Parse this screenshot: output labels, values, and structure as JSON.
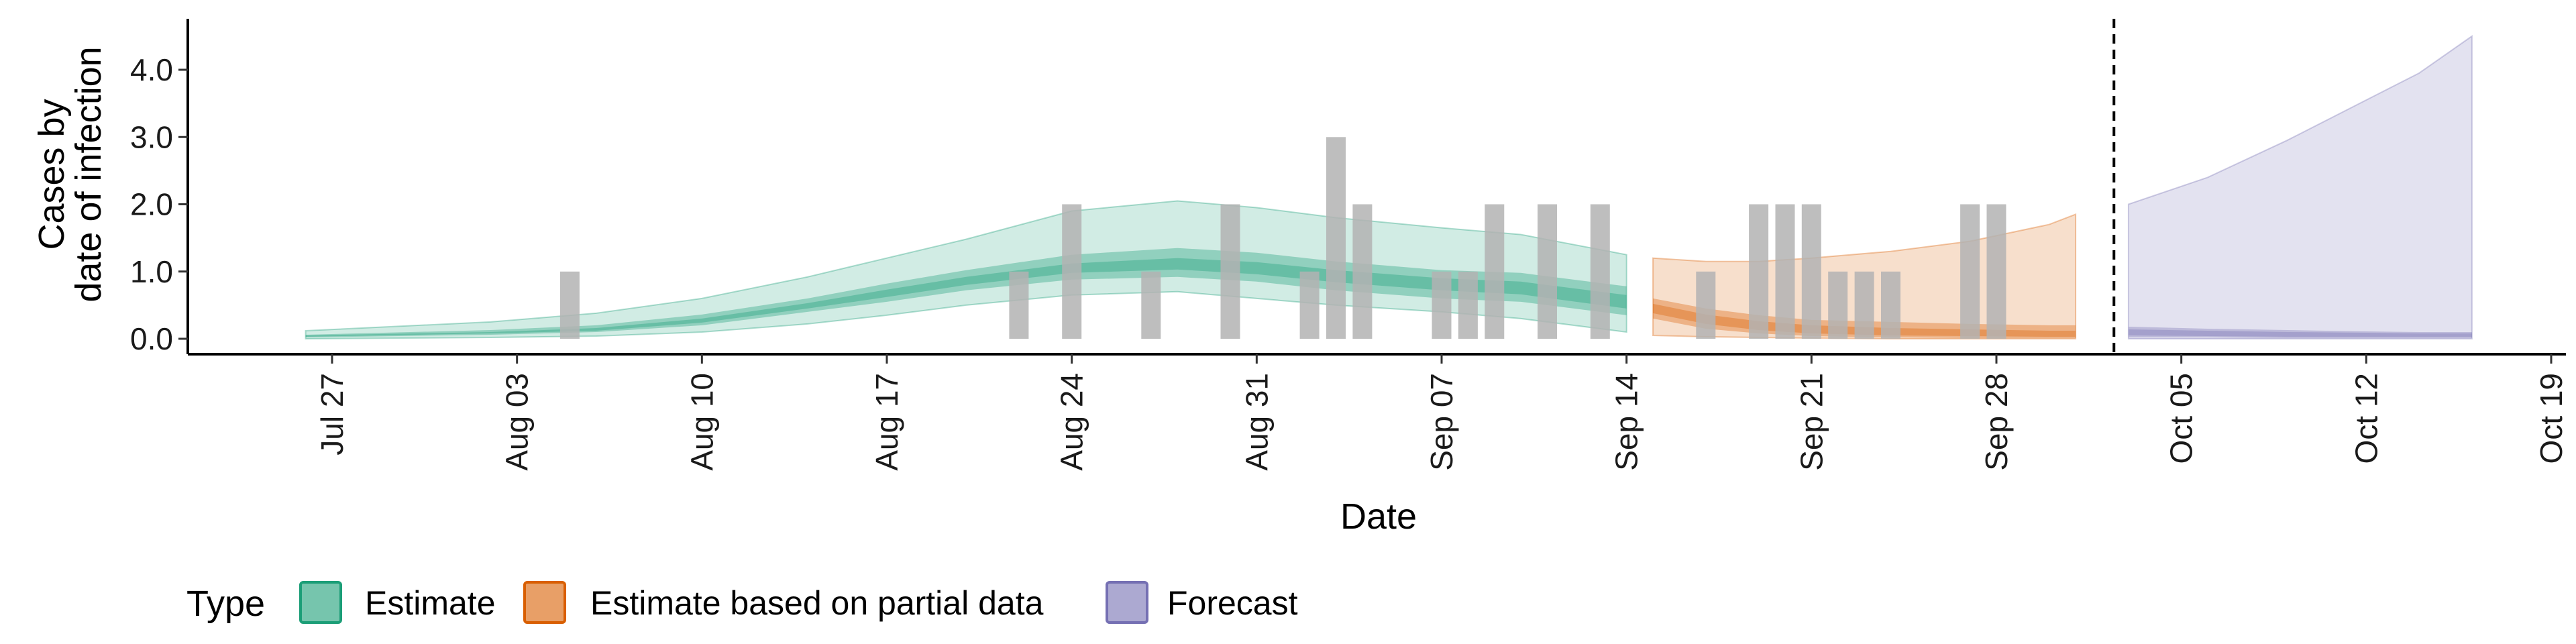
{
  "chart_data": {
    "type": "area",
    "xlabel": "Date",
    "ylabel_lines": [
      "Cases by",
      "date of infection"
    ],
    "y_ticks": [
      "0.0",
      "1.0",
      "2.0",
      "3.0",
      "4.0"
    ],
    "y_tick_values": [
      0,
      1,
      2,
      3,
      4
    ],
    "ylim": [
      -0.2,
      4.75
    ],
    "xlim": [
      "2020-07-22",
      "2020-10-19"
    ],
    "x_ticks": [
      {
        "date": "2020-07-27",
        "label": "Jul 27"
      },
      {
        "date": "2020-08-03",
        "label": "Aug 03"
      },
      {
        "date": "2020-08-10",
        "label": "Aug 10"
      },
      {
        "date": "2020-08-17",
        "label": "Aug 17"
      },
      {
        "date": "2020-08-24",
        "label": "Aug 24"
      },
      {
        "date": "2020-08-31",
        "label": "Aug 31"
      },
      {
        "date": "2020-09-07",
        "label": "Sep 07"
      },
      {
        "date": "2020-09-14",
        "label": "Sep 14"
      },
      {
        "date": "2020-09-21",
        "label": "Sep 21"
      },
      {
        "date": "2020-09-28",
        "label": "Sep 28"
      },
      {
        "date": "2020-10-05",
        "label": "Oct 05"
      },
      {
        "date": "2020-10-12",
        "label": "Oct 12"
      },
      {
        "date": "2020-10-19",
        "label": "Oct 19"
      }
    ],
    "vline_date": "2020-10-02",
    "legend": {
      "title": "Type",
      "position": "bottom",
      "items": [
        {
          "label": "Estimate",
          "color": "#1b9e77"
        },
        {
          "label": "Estimate based on partial data",
          "color": "#d95f02"
        },
        {
          "label": "Forecast",
          "color": "#7570b3"
        }
      ]
    },
    "observed_cases": {
      "color": "#b3b3b3",
      "points": [
        {
          "date": "2020-08-05",
          "value": 1
        },
        {
          "date": "2020-08-22",
          "value": 1
        },
        {
          "date": "2020-08-24",
          "value": 2
        },
        {
          "date": "2020-08-27",
          "value": 1
        },
        {
          "date": "2020-08-30",
          "value": 2
        },
        {
          "date": "2020-09-02",
          "value": 1
        },
        {
          "date": "2020-09-03",
          "value": 3
        },
        {
          "date": "2020-09-04",
          "value": 2
        },
        {
          "date": "2020-09-07",
          "value": 1
        },
        {
          "date": "2020-09-08",
          "value": 1
        },
        {
          "date": "2020-09-09",
          "value": 2
        },
        {
          "date": "2020-09-11",
          "value": 2
        },
        {
          "date": "2020-09-13",
          "value": 2
        },
        {
          "date": "2020-09-17",
          "value": 1
        },
        {
          "date": "2020-09-19",
          "value": 2
        },
        {
          "date": "2020-09-20",
          "value": 2
        },
        {
          "date": "2020-09-21",
          "value": 2
        },
        {
          "date": "2020-09-22",
          "value": 1
        },
        {
          "date": "2020-09-23",
          "value": 1
        },
        {
          "date": "2020-09-24",
          "value": 1
        },
        {
          "date": "2020-09-27",
          "value": 2
        },
        {
          "date": "2020-09-28",
          "value": 2
        }
      ]
    },
    "series": [
      {
        "name": "Estimate",
        "color": "#1b9e77",
        "dates": [
          "2020-07-26",
          "2020-08-02",
          "2020-08-06",
          "2020-08-10",
          "2020-08-14",
          "2020-08-17",
          "2020-08-20",
          "2020-08-24",
          "2020-08-28",
          "2020-08-31",
          "2020-09-03",
          "2020-09-07",
          "2020-09-10",
          "2020-09-14"
        ],
        "upper90": [
          0.12,
          0.25,
          0.38,
          0.6,
          0.92,
          1.2,
          1.48,
          1.9,
          2.05,
          1.95,
          1.8,
          1.65,
          1.55,
          1.25
        ],
        "lower90": [
          0.0,
          0.02,
          0.04,
          0.1,
          0.22,
          0.35,
          0.5,
          0.65,
          0.7,
          0.6,
          0.5,
          0.4,
          0.3,
          0.1
        ],
        "upper50": [
          0.06,
          0.13,
          0.2,
          0.36,
          0.6,
          0.82,
          1.02,
          1.25,
          1.35,
          1.28,
          1.15,
          1.02,
          0.98,
          0.78
        ],
        "lower50": [
          0.02,
          0.06,
          0.1,
          0.2,
          0.4,
          0.55,
          0.72,
          0.88,
          0.92,
          0.85,
          0.72,
          0.6,
          0.55,
          0.35
        ],
        "upper20": [
          0.05,
          0.1,
          0.16,
          0.3,
          0.53,
          0.73,
          0.92,
          1.12,
          1.2,
          1.14,
          1.02,
          0.9,
          0.85,
          0.65
        ],
        "lower20": [
          0.03,
          0.08,
          0.12,
          0.24,
          0.45,
          0.62,
          0.8,
          0.98,
          1.03,
          0.96,
          0.84,
          0.72,
          0.66,
          0.45
        ]
      },
      {
        "name": "Estimate based on partial data",
        "color": "#d95f02",
        "dates": [
          "2020-09-15",
          "2020-09-17",
          "2020-09-19",
          "2020-09-21",
          "2020-09-24",
          "2020-09-27",
          "2020-09-30",
          "2020-10-01"
        ],
        "upper90": [
          1.2,
          1.15,
          1.15,
          1.2,
          1.3,
          1.45,
          1.7,
          1.85
        ],
        "lower90": [
          0.05,
          0.03,
          0.02,
          0.01,
          0.0,
          0.0,
          0.0,
          0.0
        ],
        "upper50": [
          0.6,
          0.45,
          0.35,
          0.28,
          0.25,
          0.22,
          0.2,
          0.2
        ],
        "lower50": [
          0.3,
          0.15,
          0.08,
          0.04,
          0.02,
          0.01,
          0.01,
          0.01
        ],
        "upper20": [
          0.52,
          0.36,
          0.26,
          0.2,
          0.16,
          0.14,
          0.12,
          0.12
        ],
        "lower20": [
          0.38,
          0.22,
          0.13,
          0.08,
          0.05,
          0.04,
          0.03,
          0.03
        ]
      },
      {
        "name": "Forecast",
        "color": "#7570b3",
        "dates": [
          "2020-10-03",
          "2020-10-06",
          "2020-10-09",
          "2020-10-12",
          "2020-10-14",
          "2020-10-16"
        ],
        "upper90": [
          2.0,
          2.4,
          2.95,
          3.55,
          3.95,
          4.5
        ],
        "lower90": [
          0.0,
          0.0,
          0.0,
          0.0,
          0.0,
          0.0
        ],
        "upper50": [
          0.18,
          0.15,
          0.13,
          0.11,
          0.1,
          0.1
        ],
        "lower50": [
          0.02,
          0.02,
          0.01,
          0.01,
          0.01,
          0.01
        ],
        "upper20": [
          0.14,
          0.12,
          0.1,
          0.09,
          0.08,
          0.08
        ],
        "lower20": [
          0.05,
          0.04,
          0.03,
          0.03,
          0.03,
          0.03
        ]
      }
    ]
  }
}
